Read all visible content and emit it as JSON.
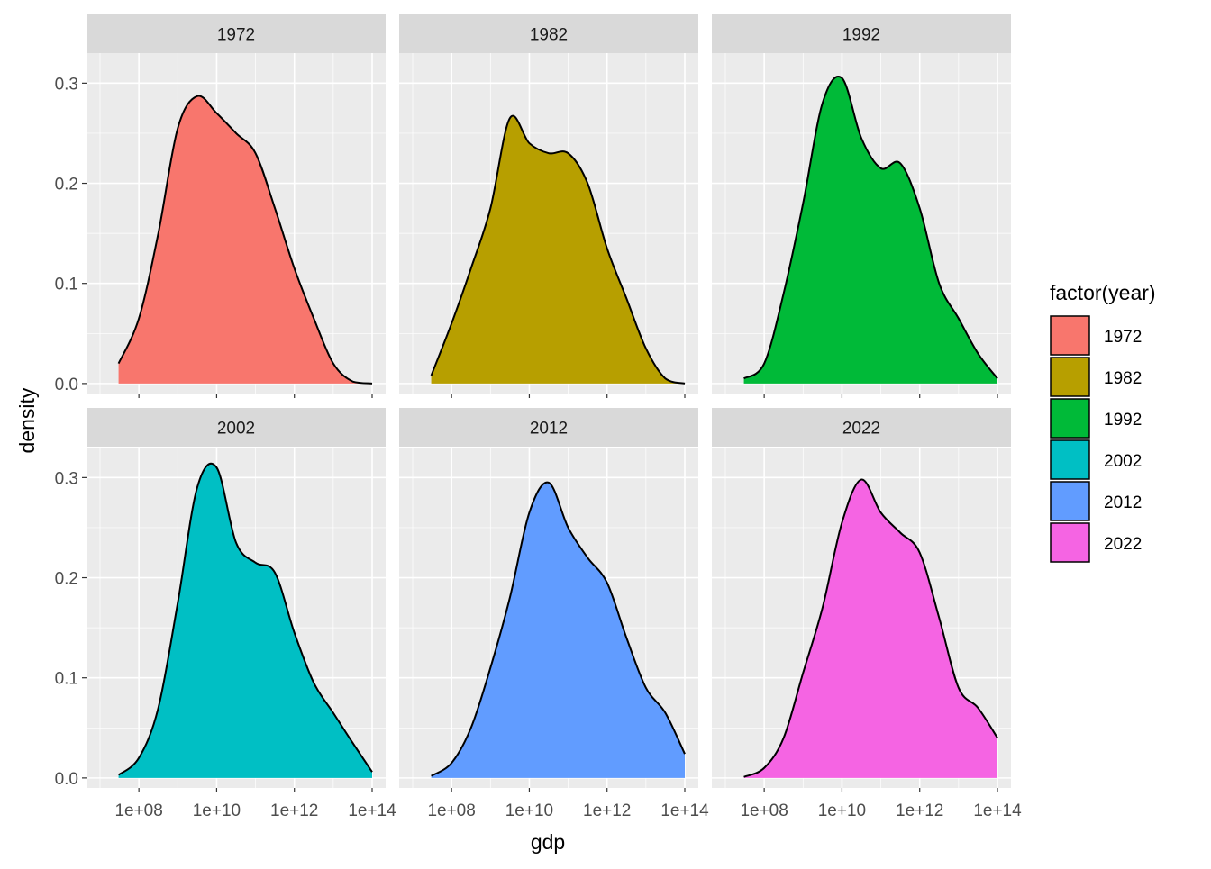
{
  "chart_data": {
    "type": "area",
    "kind": "faceted density",
    "xlabel": "gdp",
    "ylabel": "density",
    "x_scale": "log10",
    "xlim": [
      10000000.0,
      100000000000000.0
    ],
    "ylim": [
      0,
      0.33
    ],
    "x_ticks": [
      "1e+08",
      "1e+10",
      "1e+12",
      "1e+14"
    ],
    "x_tick_values": [
      100000000.0,
      10000000000.0,
      1000000000000.0,
      100000000000000.0
    ],
    "y_ticks": [
      "0.0",
      "0.1",
      "0.2",
      "0.3"
    ],
    "y_tick_values": [
      0,
      0.1,
      0.2,
      0.3
    ],
    "grid": true,
    "legend_position": "right",
    "legend": {
      "title": "factor(year)",
      "entries": [
        {
          "label": "1972",
          "color": "#F8766D"
        },
        {
          "label": "1982",
          "color": "#B79F00"
        },
        {
          "label": "1992",
          "color": "#00BA38"
        },
        {
          "label": "2002",
          "color": "#00BFC4"
        },
        {
          "label": "2012",
          "color": "#619CFF"
        },
        {
          "label": "2022",
          "color": "#F564E3"
        }
      ]
    },
    "series": [
      {
        "name": "1972",
        "color": "#F8766D",
        "x": [
          30000000.0,
          100000000.0,
          316000000.0,
          1000000000.0,
          3160000000.0,
          10000000000.0,
          31600000000.0,
          100000000000.0,
          316000000000.0,
          1000000000000.0,
          3160000000000.0,
          10000000000000.0,
          31600000000000.0,
          100000000000000.0
        ],
        "y": [
          0.02,
          0.065,
          0.15,
          0.255,
          0.287,
          0.27,
          0.25,
          0.23,
          0.175,
          0.115,
          0.065,
          0.02,
          0.002,
          0.0
        ]
      },
      {
        "name": "1982",
        "color": "#B79F00",
        "x": [
          30000000.0,
          100000000.0,
          316000000.0,
          1000000000.0,
          3160000000.0,
          10000000000.0,
          31600000000.0,
          100000000000.0,
          316000000000.0,
          1000000000000.0,
          3160000000000.0,
          10000000000000.0,
          31600000000000.0,
          100000000000000.0
        ],
        "y": [
          0.008,
          0.06,
          0.115,
          0.175,
          0.265,
          0.24,
          0.23,
          0.23,
          0.2,
          0.135,
          0.085,
          0.035,
          0.005,
          0.0
        ]
      },
      {
        "name": "1992",
        "color": "#00BA38",
        "x": [
          30000000.0,
          100000000.0,
          316000000.0,
          1000000000.0,
          3160000000.0,
          10000000000.0,
          31600000000.0,
          100000000000.0,
          316000000000.0,
          1000000000000.0,
          3160000000000.0,
          10000000000000.0,
          31600000000000.0,
          100000000000000.0
        ],
        "y": [
          0.005,
          0.02,
          0.09,
          0.18,
          0.28,
          0.305,
          0.245,
          0.215,
          0.22,
          0.175,
          0.1,
          0.065,
          0.03,
          0.005
        ]
      },
      {
        "name": "2002",
        "color": "#00BFC4",
        "x": [
          30000000.0,
          100000000.0,
          316000000.0,
          1000000000.0,
          3160000000.0,
          10000000000.0,
          31600000000.0,
          100000000000.0,
          316000000000.0,
          1000000000000.0,
          3160000000000.0,
          10000000000000.0,
          31600000000000.0,
          100000000000000.0
        ],
        "y": [
          0.003,
          0.02,
          0.07,
          0.175,
          0.29,
          0.31,
          0.235,
          0.215,
          0.205,
          0.145,
          0.095,
          0.065,
          0.035,
          0.006
        ]
      },
      {
        "name": "2012",
        "color": "#619CFF",
        "x": [
          30000000.0,
          100000000.0,
          316000000.0,
          1000000000.0,
          3160000000.0,
          10000000000.0,
          31600000000.0,
          100000000000.0,
          316000000000.0,
          1000000000000.0,
          3160000000000.0,
          10000000000000.0,
          31600000000000.0,
          100000000000000.0
        ],
        "y": [
          0.002,
          0.015,
          0.05,
          0.11,
          0.18,
          0.265,
          0.295,
          0.25,
          0.22,
          0.195,
          0.14,
          0.09,
          0.065,
          0.024
        ]
      },
      {
        "name": "2022",
        "color": "#F564E3",
        "x": [
          30000000.0,
          100000000.0,
          316000000.0,
          1000000000.0,
          3160000000.0,
          10000000000.0,
          31600000000.0,
          100000000000.0,
          316000000000.0,
          1000000000000.0,
          3160000000000.0,
          10000000000000.0,
          31600000000000.0,
          100000000000000.0
        ],
        "y": [
          0.001,
          0.01,
          0.04,
          0.105,
          0.17,
          0.255,
          0.298,
          0.265,
          0.245,
          0.225,
          0.16,
          0.09,
          0.07,
          0.04
        ]
      }
    ]
  }
}
